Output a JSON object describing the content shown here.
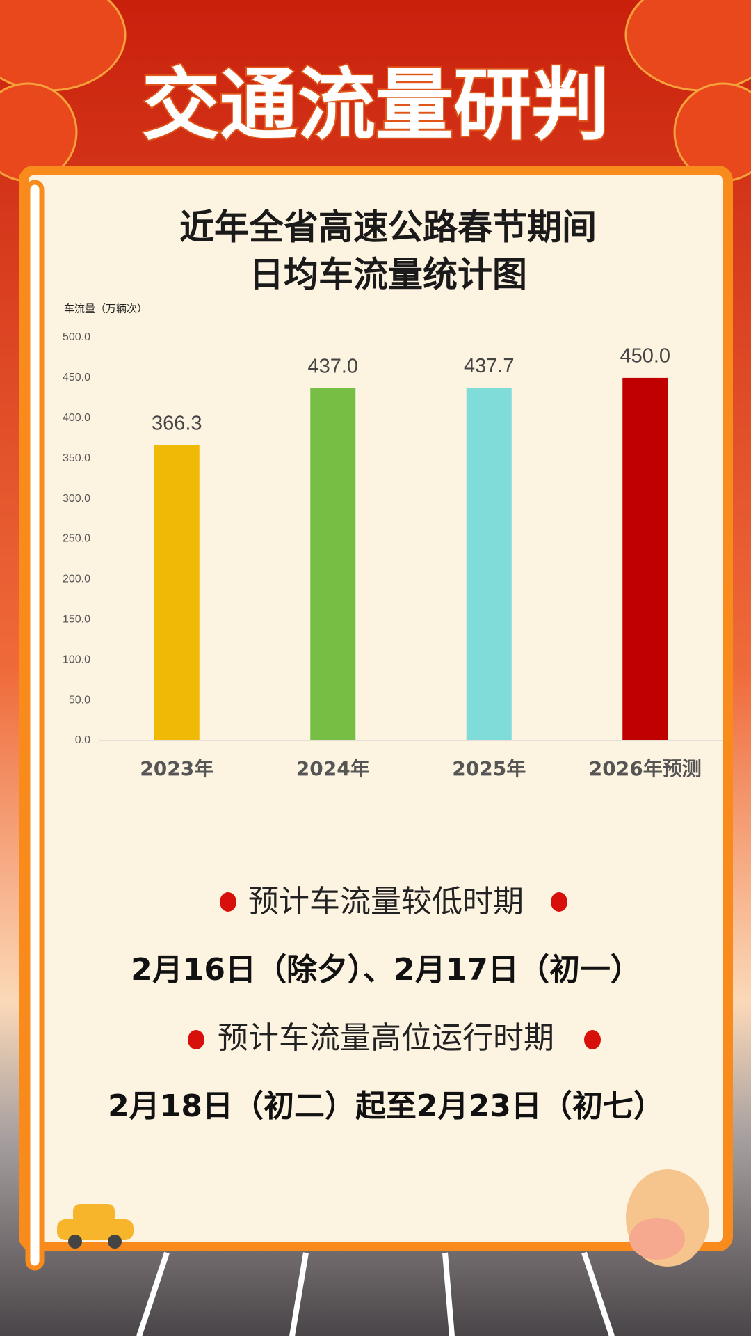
{
  "header": {
    "title": "交通流量研判"
  },
  "chart_data": {
    "type": "bar",
    "title": [
      "近年全省高速公路春节期间",
      "日均车流量统计图"
    ],
    "y_label": "车流量（万辆次）",
    "categories": [
      "2023年",
      "2024年",
      "2025年",
      "2026年预测"
    ],
    "values": [
      366.3,
      437.0,
      437.7,
      450.0
    ],
    "value_labels": [
      "366.3",
      "437.0",
      "437.7",
      "450.0"
    ],
    "colors": [
      "#f0b906",
      "#77be44",
      "#7fdcd9",
      "#c00000"
    ],
    "ylim": [
      0,
      500
    ],
    "yticks": [
      {
        "value": 0,
        "label": "0.0"
      },
      {
        "value": 50,
        "label": "50.0"
      },
      {
        "value": 100,
        "label": "100.0"
      },
      {
        "value": 150,
        "label": "150.0"
      },
      {
        "value": 200,
        "label": "200.0"
      },
      {
        "value": 250,
        "label": "250.0"
      },
      {
        "value": 300,
        "label": "300.0"
      },
      {
        "value": 350,
        "label": "350.0"
      },
      {
        "value": 400,
        "label": "400.0"
      },
      {
        "value": 450,
        "label": "450.0"
      },
      {
        "value": 500,
        "label": "500.0"
      }
    ],
    "grid": false
  },
  "notes": [
    {
      "heading": "预计车流量较低时期",
      "dates": "2月16日（除夕）、2月17日（初一）"
    },
    {
      "heading": "预计车流量高位运行时期",
      "dates": "2月18日（初二）起至2月23日（初七）"
    }
  ]
}
